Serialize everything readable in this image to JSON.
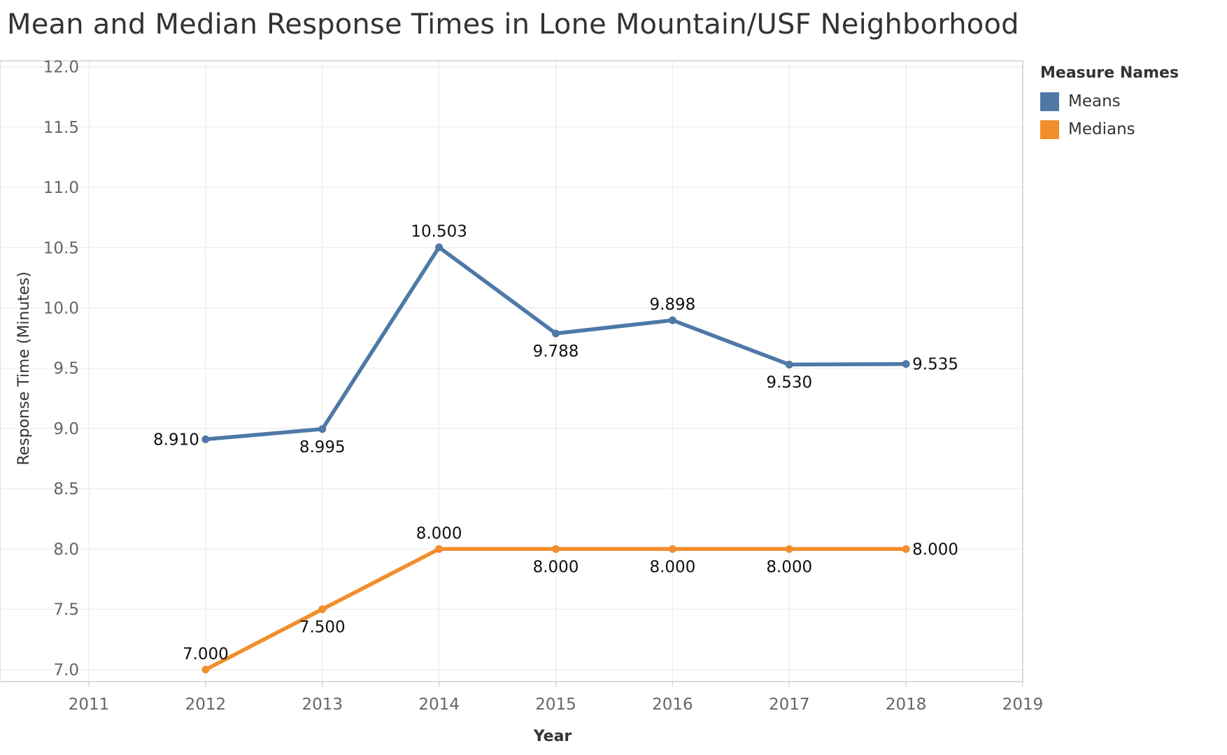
{
  "title": "Mean and Median Response Times in Lone Mountain/USF Neighborhood",
  "legend": {
    "title": "Measure Names",
    "items": [
      {
        "label": "Means",
        "color": "#4e79a7"
      },
      {
        "label": "Medians",
        "color": "#f28e2b"
      }
    ]
  },
  "chart_data": {
    "type": "line",
    "title": "Mean and Median Response Times in Lone Mountain/USF Neighborhood",
    "xlabel": "Year",
    "ylabel": "Response Time (Minutes)",
    "xlim": [
      2011,
      2019
    ],
    "ylim": [
      6.9,
      12.05
    ],
    "xticks": [
      2011,
      2012,
      2013,
      2014,
      2015,
      2016,
      2017,
      2018,
      2019
    ],
    "yticks": [
      7.0,
      7.5,
      8.0,
      8.5,
      9.0,
      9.5,
      10.0,
      10.5,
      11.0,
      11.5,
      12.0
    ],
    "grid": true,
    "legend_position": "right",
    "x": [
      2012,
      2013,
      2014,
      2015,
      2016,
      2017,
      2018
    ],
    "series": [
      {
        "name": "Means",
        "color": "#4e79a7",
        "values": [
          8.91,
          8.995,
          10.503,
          9.788,
          9.898,
          9.53,
          9.535
        ],
        "labels": [
          "8.910",
          "8.995",
          "10.503",
          "9.788",
          "9.898",
          "9.530",
          "9.535"
        ]
      },
      {
        "name": "Medians",
        "color": "#f28e2b",
        "values": [
          7.0,
          7.5,
          8.0,
          8.0,
          8.0,
          8.0,
          8.0
        ],
        "labels": [
          "7.000",
          "7.500",
          "8.000",
          "8.000",
          "8.000",
          "8.000",
          "8.000"
        ]
      }
    ]
  }
}
